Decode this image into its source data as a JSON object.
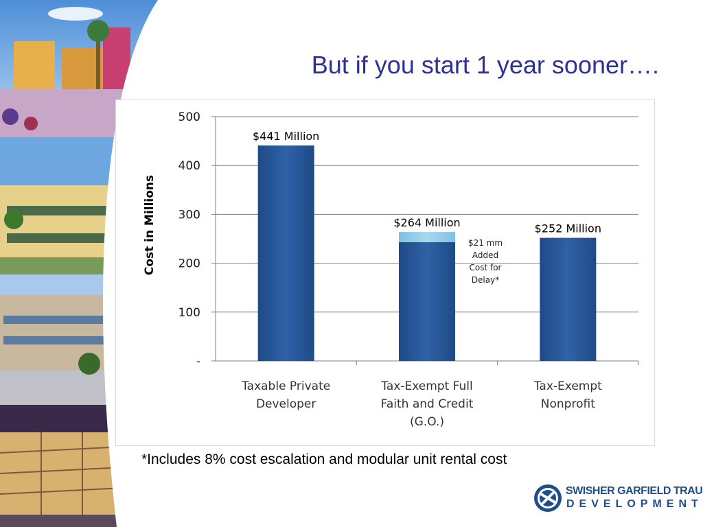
{
  "slide": {
    "title": "But if you start 1 year sooner….",
    "footnote": "*Includes 8% cost escalation and modular unit rental cost"
  },
  "logo": {
    "line1": "SWISHER GARFIELD TRAUB",
    "line2": "DEVELOPMENT"
  },
  "colors": {
    "title": "#2e3192",
    "bar": "#2f62a8",
    "bar_highlight": "#a8d8ef",
    "logo": "#1f4e8a"
  },
  "chart_data": {
    "type": "bar",
    "ylabel": "Cost in Millions",
    "xlabel": "",
    "ylim": [
      0,
      500
    ],
    "yticks": [
      0,
      100,
      200,
      300,
      400,
      500
    ],
    "ytick_labels": [
      "-",
      "100",
      "200",
      "300",
      "400",
      "500"
    ],
    "grid": true,
    "categories": [
      [
        "Taxable Private",
        "Developer"
      ],
      [
        "Tax-Exempt Full",
        "Faith and Credit",
        "(G.O.)"
      ],
      [
        "Tax-Exempt",
        "Nonprofit"
      ]
    ],
    "values": [
      441,
      264,
      252
    ],
    "data_labels": [
      "$441 Million",
      "$264 Million",
      "$252 Million"
    ],
    "stacked_addition": {
      "category_index": 1,
      "value": 21
    },
    "annotation": [
      "$21 mm",
      "Added",
      "Cost for",
      "Delay*"
    ]
  }
}
